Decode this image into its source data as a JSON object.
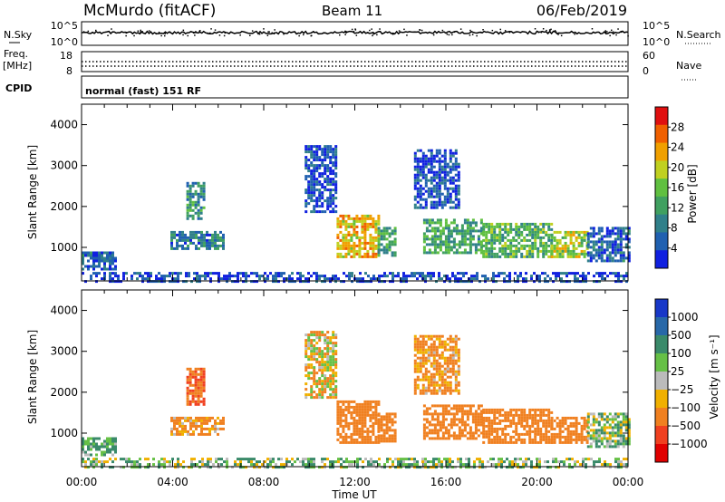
{
  "header": {
    "station": "McMurdo (fitACF)",
    "beam": "Beam 11",
    "date": "06/Feb/2019"
  },
  "noise_panel": {
    "left_label": "N.Sky",
    "right_label": "N.Search",
    "left_ticks": [
      "10^5",
      "10^0"
    ],
    "right_ticks": [
      "10^5",
      "10^0"
    ]
  },
  "freq_panel": {
    "left_label_line1": "Freq.",
    "left_label_line2": "[MHz]",
    "left_ticks": [
      "18",
      "8"
    ],
    "right_label": "Nave",
    "right_ticks": [
      "60",
      "0"
    ]
  },
  "cpid_panel": {
    "label": "CPID",
    "mode_text": "normal (fast) 151 RF"
  },
  "x_axis": {
    "title": "Time UT",
    "ticks": [
      "00:00",
      "04:00",
      "08:00",
      "12:00",
      "16:00",
      "20:00",
      "00:00"
    ]
  },
  "power_panel": {
    "ylabel": "Slant Range [km]",
    "yticks": [
      "4000",
      "3000",
      "2000",
      "1000"
    ],
    "colorbar_label": "Power [dB]",
    "colorbar_ticks": [
      "28",
      "24",
      "20",
      "16",
      "12",
      "8",
      "4"
    ]
  },
  "velocity_panel": {
    "ylabel": "Slant Range [km]",
    "yticks": [
      "4000",
      "3000",
      "2000",
      "1000"
    ],
    "colorbar_label": "Velocity [m s⁻¹]",
    "colorbar_ticks": [
      "1000",
      "500",
      "100",
      "25",
      "−25",
      "−100",
      "−500",
      "−1000"
    ]
  },
  "colors": {
    "power_scale": [
      "#1020e0",
      "#2060b0",
      "#30808a",
      "#40a060",
      "#60c040",
      "#c0d020",
      "#f0a000",
      "#f06000",
      "#e01010"
    ],
    "velocity_scale": [
      "#1838c8",
      "#2868a8",
      "#3a8a6a",
      "#66c046",
      "#bbbbbb",
      "#f0b000",
      "#f08020",
      "#f04020",
      "#e00000"
    ],
    "ground_scatter": "#a0a0a0"
  },
  "chart_data": [
    {
      "type": "heatmap",
      "quantity": "power",
      "x_range_hours": [
        0,
        24
      ],
      "y_range_km": [
        180,
        4500
      ],
      "colorbar_range_db": [
        0,
        32
      ],
      "echo_regions": [
        {
          "t0": 0.0,
          "t1": 1.5,
          "r0": 500,
          "r1": 900,
          "power_db": 6
        },
        {
          "t0": 4.6,
          "t1": 5.4,
          "r0": 1700,
          "r1": 2600,
          "power_db": 10
        },
        {
          "t0": 3.9,
          "t1": 6.2,
          "r0": 1000,
          "r1": 1400,
          "power_db": 8
        },
        {
          "t0": 9.8,
          "t1": 11.2,
          "r0": 1900,
          "r1": 3500,
          "power_db": 4
        },
        {
          "t0": 11.2,
          "t1": 13.0,
          "r0": 800,
          "r1": 1800,
          "power_db": 22
        },
        {
          "t0": 13.0,
          "t1": 13.8,
          "r0": 800,
          "r1": 1500,
          "power_db": 12
        },
        {
          "t0": 14.6,
          "t1": 16.6,
          "r0": 2000,
          "r1": 3400,
          "power_db": 4
        },
        {
          "t0": 15.0,
          "t1": 17.6,
          "r0": 900,
          "r1": 1700,
          "power_db": 12
        },
        {
          "t0": 17.6,
          "t1": 20.6,
          "r0": 800,
          "r1": 1600,
          "power_db": 14
        },
        {
          "t0": 20.6,
          "t1": 22.2,
          "r0": 800,
          "r1": 1400,
          "power_db": 18
        },
        {
          "t0": 22.2,
          "t1": 24.0,
          "r0": 700,
          "r1": 1500,
          "power_db": 6
        },
        {
          "t0": 0.0,
          "t1": 24.0,
          "r0": 180,
          "r1": 400,
          "power_db": 4
        }
      ]
    },
    {
      "type": "heatmap",
      "quantity": "velocity",
      "x_range_hours": [
        0,
        24
      ],
      "y_range_km": [
        180,
        4500
      ],
      "colorbar_range_ms": [
        -1000,
        1000
      ],
      "echo_regions": [
        {
          "t0": 0.0,
          "t1": 1.5,
          "r0": 500,
          "r1": 900,
          "velocity_ms": 150
        },
        {
          "t0": 4.6,
          "t1": 5.4,
          "r0": 1700,
          "r1": 2600,
          "velocity_ms": -500
        },
        {
          "t0": 3.9,
          "t1": 6.2,
          "r0": 1000,
          "r1": 1400,
          "velocity_ms": -150
        },
        {
          "t0": 9.8,
          "t1": 11.2,
          "r0": 1900,
          "r1": 3500,
          "velocity_ms": -50
        },
        {
          "t0": 11.2,
          "t1": 13.0,
          "r0": 800,
          "r1": 1800,
          "velocity_ms": -300
        },
        {
          "t0": 13.0,
          "t1": 13.8,
          "r0": 800,
          "r1": 1500,
          "velocity_ms": -300
        },
        {
          "t0": 14.6,
          "t1": 16.6,
          "r0": 2000,
          "r1": 3400,
          "velocity_ms": -150
        },
        {
          "t0": 15.0,
          "t1": 17.6,
          "r0": 900,
          "r1": 1700,
          "velocity_ms": -300
        },
        {
          "t0": 17.6,
          "t1": 20.6,
          "r0": 800,
          "r1": 1600,
          "velocity_ms": -300
        },
        {
          "t0": 20.6,
          "t1": 22.2,
          "r0": 800,
          "r1": 1400,
          "velocity_ms": -300
        },
        {
          "t0": 22.2,
          "t1": 24.0,
          "r0": 700,
          "r1": 1500,
          "velocity_ms": 50
        },
        {
          "t0": 0.0,
          "t1": 24.0,
          "r0": 180,
          "r1": 400,
          "velocity_ms": 60
        }
      ]
    }
  ]
}
